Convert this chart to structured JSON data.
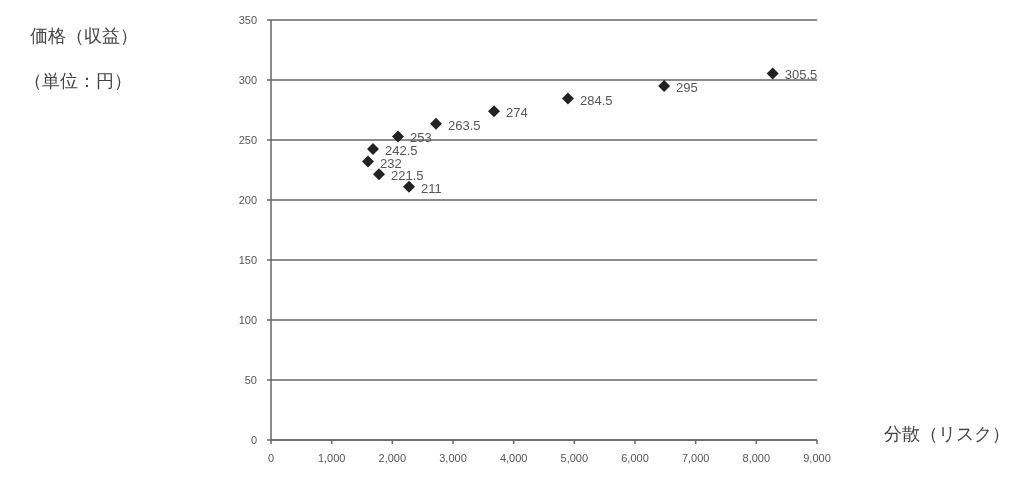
{
  "chart_data": {
    "type": "scatter",
    "xlabel": "分散（リスク）",
    "annotations": [
      "価格（収益）",
      "（単位：円）"
    ],
    "x": [
      8270,
      6480,
      4895,
      3676,
      2720,
      2093,
      1681,
      1599,
      1780,
      2275
    ],
    "values": [
      305.5,
      295,
      284.5,
      274,
      263.5,
      253,
      242.5,
      232,
      221.5,
      211
    ],
    "color": "#222222",
    "marker": "diamond",
    "data_labels": true,
    "grid": "y",
    "xlim": [
      0,
      9000
    ],
    "xticks": [
      {
        "value": 0,
        "label": "0"
      },
      {
        "value": 1000,
        "label": "1,000"
      },
      {
        "value": 2000,
        "label": "2,000"
      },
      {
        "value": 3000,
        "label": "3,000"
      },
      {
        "value": 4000,
        "label": "4,000"
      },
      {
        "value": 5000,
        "label": "5,000"
      },
      {
        "value": 6000,
        "label": "6,000"
      },
      {
        "value": 7000,
        "label": "7,000"
      },
      {
        "value": 8000,
        "label": "8,000"
      },
      {
        "value": 9000,
        "label": "9,000"
      }
    ],
    "ylim": [
      0,
      350
    ],
    "yticks": [
      0,
      50,
      100,
      150,
      200,
      250,
      300,
      350
    ]
  }
}
